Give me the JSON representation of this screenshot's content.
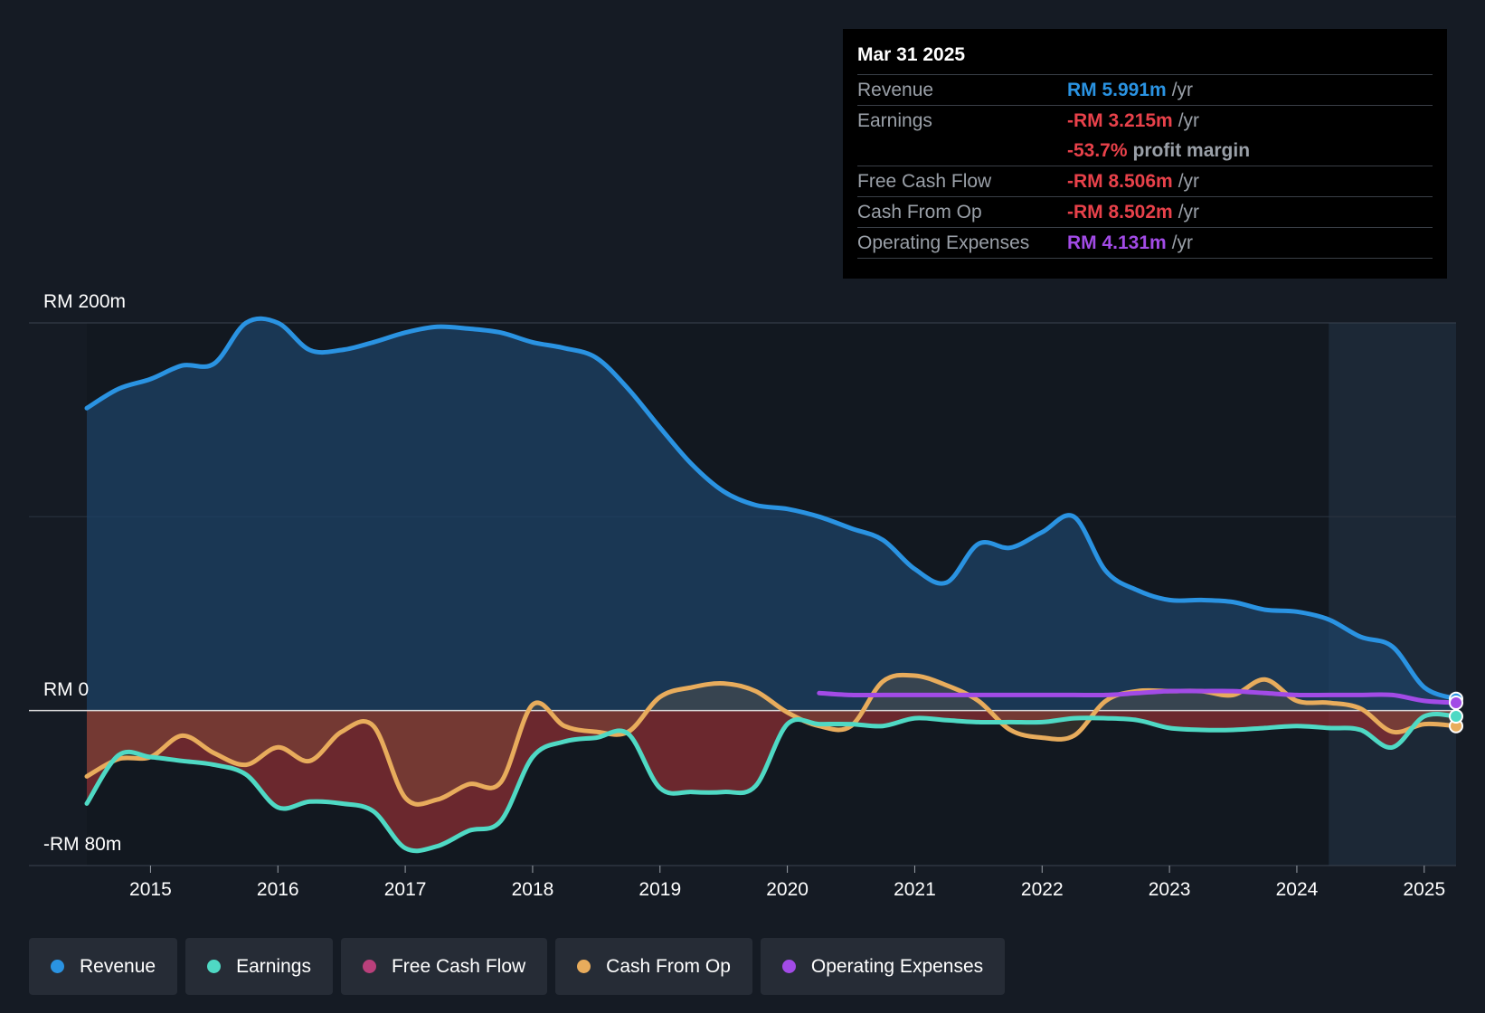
{
  "chart_data": {
    "type": "line",
    "y_axis": {
      "top_label": "RM 200m",
      "zero_label": "RM 0",
      "bottom_label": "-RM 80m",
      "ylim": [
        -80,
        200
      ]
    },
    "x_ticks": [
      "2015",
      "2016",
      "2017",
      "2018",
      "2019",
      "2020",
      "2021",
      "2022",
      "2023",
      "2024",
      "2025"
    ],
    "xlim": [
      2014.5,
      2025.25
    ],
    "forecast_shade_start": 2024.25,
    "series": [
      {
        "name": "Revenue",
        "color": "#2a93e2",
        "x": [
          2014.5,
          2014.75,
          2015.0,
          2015.25,
          2015.5,
          2015.75,
          2016.0,
          2016.25,
          2016.5,
          2016.75,
          2017.0,
          2017.25,
          2017.5,
          2017.75,
          2018.0,
          2018.25,
          2018.5,
          2018.75,
          2019.0,
          2019.25,
          2019.5,
          2019.75,
          2020.0,
          2020.25,
          2020.5,
          2020.75,
          2021.0,
          2021.25,
          2021.5,
          2021.75,
          2022.0,
          2022.25,
          2022.5,
          2022.75,
          2023.0,
          2023.25,
          2023.5,
          2023.75,
          2024.0,
          2024.25,
          2024.5,
          2024.75,
          2025.0,
          2025.25
        ],
        "values": [
          156,
          166,
          171,
          178,
          179,
          200,
          200,
          186,
          186,
          190,
          195,
          198,
          197,
          195,
          190,
          187,
          182,
          166,
          146,
          127,
          113,
          106,
          104,
          100,
          94,
          88,
          73,
          66,
          86,
          84,
          92,
          100,
          72,
          62,
          57,
          57,
          56,
          52,
          51,
          47,
          38,
          33,
          12,
          6
        ]
      },
      {
        "name": "Earnings",
        "color": "#4fd9c4",
        "x": [
          2014.5,
          2014.75,
          2015.0,
          2015.25,
          2015.5,
          2015.75,
          2016.0,
          2016.25,
          2016.5,
          2016.75,
          2017.0,
          2017.25,
          2017.5,
          2017.75,
          2018.0,
          2018.25,
          2018.5,
          2018.75,
          2019.0,
          2019.25,
          2019.5,
          2019.75,
          2020.0,
          2020.25,
          2020.5,
          2020.75,
          2021.0,
          2021.25,
          2021.5,
          2021.75,
          2022.0,
          2022.25,
          2022.5,
          2022.75,
          2023.0,
          2023.25,
          2023.5,
          2023.75,
          2024.0,
          2024.25,
          2024.5,
          2024.75,
          2025.0,
          2025.25
        ],
        "values": [
          -48,
          -23,
          -24,
          -26,
          -28,
          -33,
          -50,
          -47,
          -48,
          -52,
          -71,
          -70,
          -62,
          -57,
          -24,
          -16,
          -14,
          -12,
          -40,
          -42,
          -42,
          -39,
          -7,
          -7,
          -7,
          -8,
          -4,
          -5,
          -6,
          -6,
          -6,
          -4,
          -4,
          -5,
          -9,
          -10,
          -10,
          -9,
          -8,
          -9,
          -10,
          -19,
          -3,
          -3
        ]
      },
      {
        "name": "Free Cash Flow",
        "color": "#b9407b",
        "x": [],
        "values": []
      },
      {
        "name": "Cash From Op",
        "color": "#e8ac5c",
        "x": [
          2014.5,
          2014.75,
          2015.0,
          2015.25,
          2015.5,
          2015.75,
          2016.0,
          2016.25,
          2016.5,
          2016.75,
          2017.0,
          2017.25,
          2017.5,
          2017.75,
          2018.0,
          2018.25,
          2018.5,
          2018.75,
          2019.0,
          2019.25,
          2019.5,
          2019.75,
          2020.0,
          2020.25,
          2020.5,
          2020.75,
          2021.0,
          2021.25,
          2021.5,
          2021.75,
          2022.0,
          2022.25,
          2022.5,
          2022.75,
          2023.0,
          2023.25,
          2023.5,
          2023.75,
          2024.0,
          2024.25,
          2024.5,
          2024.75,
          2025.0,
          2025.25
        ],
        "values": [
          -34,
          -25,
          -24,
          -13,
          -22,
          -28,
          -19,
          -26,
          -11,
          -8,
          -45,
          -46,
          -38,
          -37,
          3,
          -8,
          -11,
          -11,
          7,
          12,
          14,
          10,
          -1,
          -8,
          -8,
          15,
          18,
          13,
          5,
          -10,
          -14,
          -13,
          5,
          10,
          10,
          10,
          8,
          16,
          5,
          4,
          1,
          -11,
          -7,
          -8
        ]
      },
      {
        "name": "Operating Expenses",
        "color": "#a24be6",
        "x": [
          2020.25,
          2020.5,
          2020.75,
          2021.0,
          2021.25,
          2021.5,
          2021.75,
          2022.0,
          2022.25,
          2022.5,
          2022.75,
          2023.0,
          2023.25,
          2023.5,
          2023.75,
          2024.0,
          2024.25,
          2024.5,
          2024.75,
          2025.0,
          2025.25
        ],
        "values": [
          9,
          8,
          8,
          8,
          8,
          8,
          8,
          8,
          8,
          8,
          9,
          10,
          10,
          10,
          9,
          8,
          8,
          8,
          8,
          5,
          4
        ]
      }
    ]
  },
  "tooltip": {
    "date": "Mar 31 2025",
    "revenue": {
      "label": "Revenue",
      "value": "RM 5.991m",
      "unit": "/yr",
      "color": "#2a93e2"
    },
    "earnings": {
      "label": "Earnings",
      "value": "-RM 3.215m",
      "unit": "/yr",
      "color": "#e8414a"
    },
    "margin": {
      "value": "-53.7%",
      "unit": "profit margin",
      "color": "#e8414a"
    },
    "fcf": {
      "label": "Free Cash Flow",
      "value": "-RM 8.506m",
      "unit": "/yr",
      "color": "#e8414a"
    },
    "cfo": {
      "label": "Cash From Op",
      "value": "-RM 8.502m",
      "unit": "/yr",
      "color": "#e8414a"
    },
    "opex": {
      "label": "Operating Expenses",
      "value": "RM 4.131m",
      "unit": "/yr",
      "color": "#a24be6"
    }
  },
  "legend": [
    {
      "label": "Revenue",
      "color": "#2a93e2"
    },
    {
      "label": "Earnings",
      "color": "#4fd9c4"
    },
    {
      "label": "Free Cash Flow",
      "color": "#b9407b"
    },
    {
      "label": "Cash From Op",
      "color": "#e8ac5c"
    },
    {
      "label": "Operating Expenses",
      "color": "#a24be6"
    }
  ]
}
